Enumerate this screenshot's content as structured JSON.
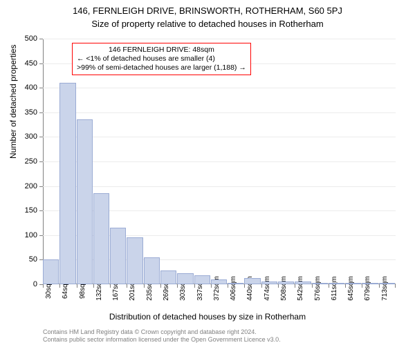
{
  "title_main": "146, FERNLEIGH DRIVE, BRINSWORTH, ROTHERHAM, S60 5PJ",
  "title_sub": "Size of property relative to detached houses in Rotherham",
  "y_label": "Number of detached properties",
  "x_label": "Distribution of detached houses by size in Rotherham",
  "chart": {
    "type": "histogram",
    "ylim": [
      0,
      500
    ],
    "ytick_step": 50,
    "bar_fill": "#cad4ea",
    "bar_stroke": "#9aabd4",
    "grid_color": "#ebebeb",
    "axis_color": "#808080",
    "background": "#ffffff",
    "categories": [
      "30sqm",
      "64sqm",
      "98sqm",
      "132sqm",
      "167sqm",
      "201sqm",
      "235sqm",
      "269sqm",
      "303sqm",
      "337sqm",
      "372sqm",
      "406sqm",
      "440sqm",
      "474sqm",
      "508sqm",
      "542sqm",
      "576sqm",
      "611sqm",
      "645sqm",
      "679sqm",
      "713sqm"
    ],
    "values": [
      50,
      410,
      335,
      185,
      115,
      95,
      55,
      28,
      22,
      18,
      10,
      3,
      12,
      5,
      5,
      5,
      2,
      1,
      2,
      1,
      1
    ]
  },
  "marker": {
    "border_color": "#ff0000",
    "title": "146 FERNLEIGH DRIVE: 48sqm",
    "line1": "← <1% of detached houses are smaller (4)",
    "line2": ">99% of semi-detached houses are larger (1,188) →"
  },
  "footer": {
    "line1": "Contains HM Land Registry data © Crown copyright and database right 2024.",
    "line2": "Contains public sector information licensed under the Open Government Licence v3.0."
  }
}
